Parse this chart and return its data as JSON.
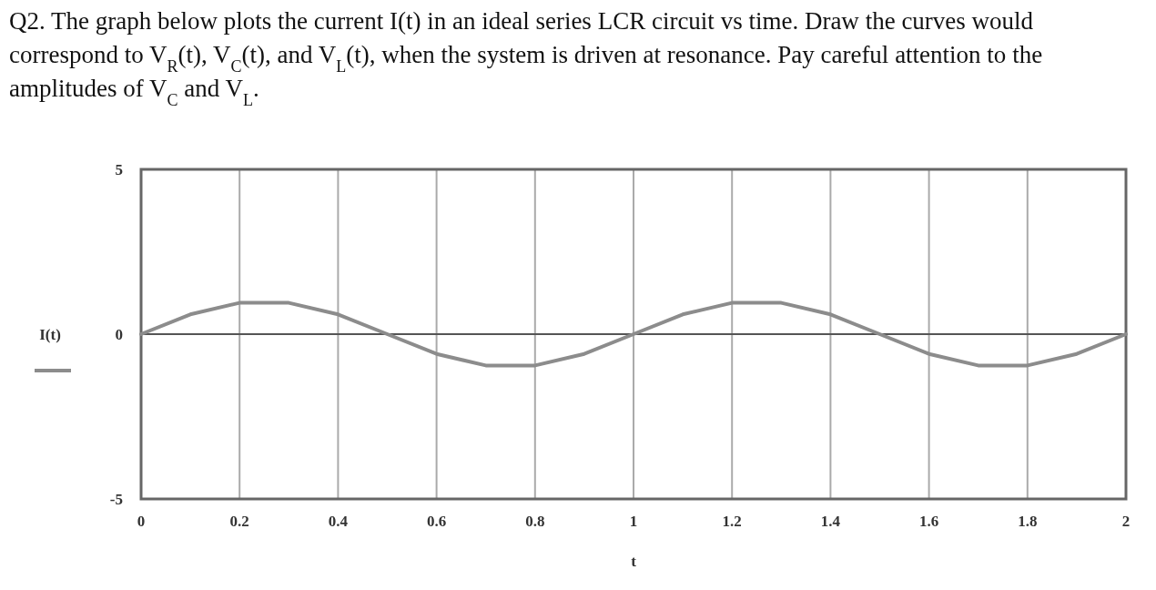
{
  "chart_data": {
    "type": "line",
    "title": "Q2. The graph below plots the current I(t) in an ideal series LCR circuit vs time. Draw the curves would correspond to V$_{R}$(t), V$_{C}$(t), and V$_{L}$(t), when the system is driven at resonance. Pay careful attention to the amplitudes of V$_{C}$ and V$_{L}$.",
    "xlabel": "t",
    "x": [
      0,
      0.1,
      0.2,
      0.3,
      0.4,
      0.5,
      0.6,
      0.7,
      0.8,
      0.9,
      1,
      1.1,
      1.2,
      1.3,
      1.4,
      1.5,
      1.6,
      1.7,
      1.8,
      1.9,
      2
    ],
    "series": [
      {
        "name": "I(t)",
        "color": "#8c8c8c",
        "values": [
          0,
          0.6,
          0.95,
          0.95,
          0.6,
          0,
          -0.6,
          -0.95,
          -0.95,
          -0.6,
          0,
          0.6,
          0.95,
          0.95,
          0.6,
          0,
          -0.6,
          -0.95,
          -0.95,
          -0.6,
          0
        ]
      }
    ],
    "xlim": [
      0,
      2
    ],
    "xticks": [
      0,
      0.2,
      0.4,
      0.6,
      0.8,
      1,
      1.2,
      1.4,
      1.6,
      1.8,
      2
    ],
    "ylim": [
      -5,
      5
    ],
    "yticks": [
      -5,
      0,
      5
    ],
    "ref_lines": [
      {
        "axis": "y",
        "value": 0,
        "color": "#555555"
      }
    ],
    "grid": "x",
    "legend": "left",
    "marker": "none",
    "line_style": "solid"
  }
}
